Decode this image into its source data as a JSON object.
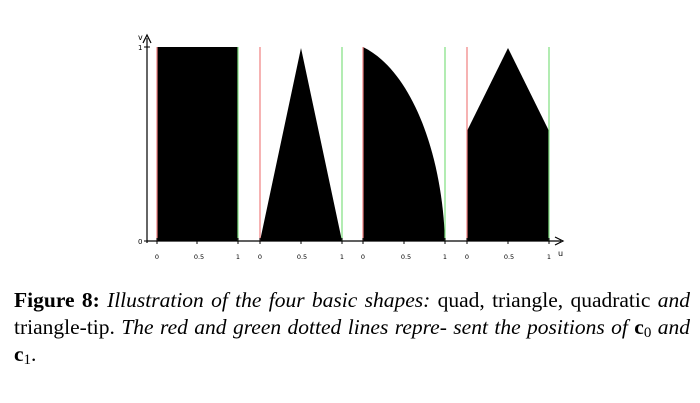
{
  "figure": {
    "axes": {
      "v_label": "v",
      "u_label": "u",
      "v_ticks": [
        "0",
        "1"
      ],
      "u_ticks": [
        "0",
        "0.5",
        "1"
      ]
    },
    "panels": [
      {
        "shape": "quad"
      },
      {
        "shape": "triangle"
      },
      {
        "shape": "quadratic"
      },
      {
        "shape": "triangle-tip"
      }
    ],
    "colors": {
      "fill": "#000000",
      "c0_line": "#f08080",
      "c1_line": "#80e080"
    }
  },
  "caption": {
    "label": "Figure 8:",
    "part1": "Illustration of the four basic shapes:",
    "quad": "quad",
    "comma": ",",
    "triangle": "triangle",
    "quadratic": "quadratic",
    "and": "and",
    "triangle_tip": "triangle-tip",
    "period": ".",
    "part2": "The red and green dotted lines repre- sent the positions of",
    "c": "c",
    "sub0": "0",
    "and2": "and",
    "sub1": "1",
    "end": "."
  }
}
